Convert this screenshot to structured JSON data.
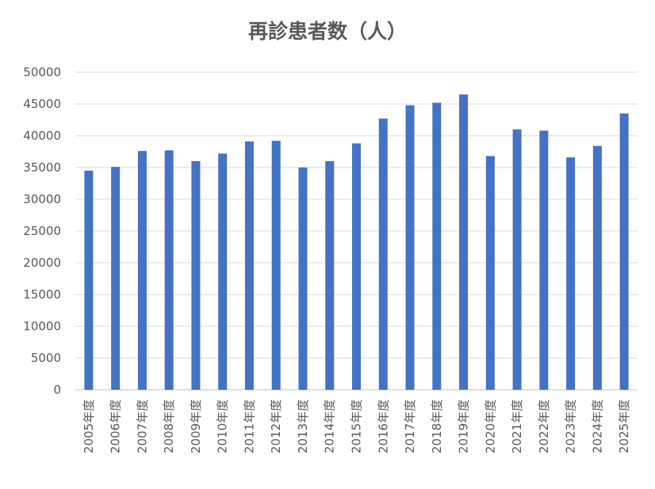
{
  "chart_data": {
    "type": "bar",
    "title": "再診患者数（人）",
    "xlabel": "",
    "ylabel": "",
    "ylim": [
      0,
      50000
    ],
    "yticks": [
      0,
      5000,
      10000,
      15000,
      20000,
      25000,
      30000,
      35000,
      40000,
      45000,
      50000
    ],
    "grid": true,
    "legend": "none",
    "bar_color": "#4472C4",
    "categories": [
      "2005年度",
      "2006年度",
      "2007年度",
      "2008年度",
      "2009年度",
      "2010年度",
      "2011年度",
      "2012年度",
      "2013年度",
      "2014年度",
      "2015年度",
      "2016年度",
      "2017年度",
      "2018年度",
      "2019年度",
      "2020年度",
      "2021年度",
      "2022年度",
      "2023年度",
      "2024年度",
      "2025年度"
    ],
    "values": [
      34500,
      35100,
      37600,
      37700,
      36000,
      37200,
      39100,
      39200,
      35000,
      36000,
      38800,
      42700,
      44800,
      45200,
      46500,
      36800,
      41000,
      40800,
      36600,
      38400,
      43500
    ]
  }
}
